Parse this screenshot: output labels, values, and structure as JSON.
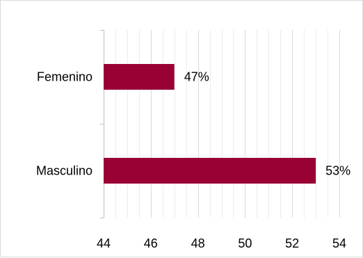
{
  "chart_data": {
    "type": "bar",
    "orientation": "horizontal",
    "categories": [
      "Femenino",
      "Masculino"
    ],
    "values": [
      47,
      53
    ],
    "data_labels": [
      "47%",
      "53%"
    ],
    "bar_color": "#990033",
    "xlim": [
      44,
      54
    ],
    "x_ticks": [
      "44",
      "46",
      "48",
      "50",
      "52",
      "54"
    ],
    "minor_grid_step": 0.5,
    "grid": true,
    "legend": "none"
  }
}
